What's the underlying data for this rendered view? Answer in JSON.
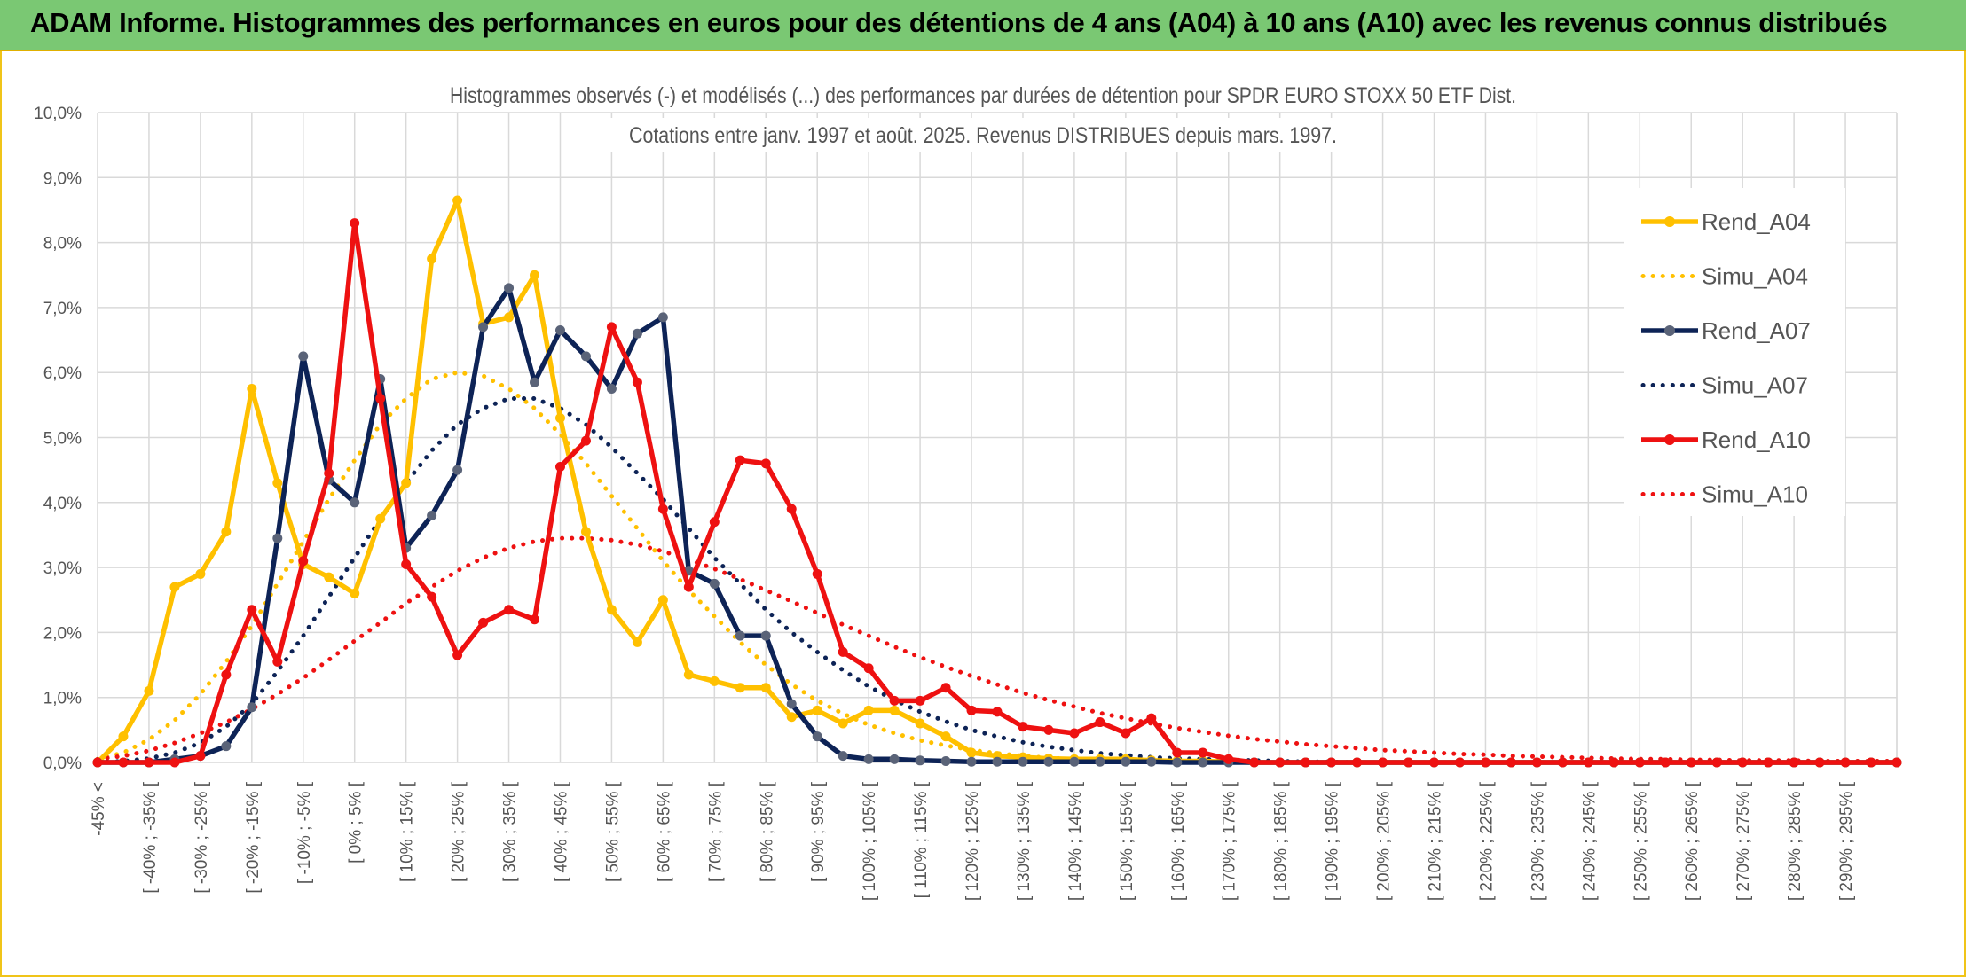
{
  "banner": {
    "title": "ADAM Informe. Histogrammes des performances en euros pour des détentions de 4 ans (A04) à 10 ans (A10) avec les revenus connus distribués"
  },
  "colors": {
    "banner_bg": "#7ac873",
    "yellow": "#ffc000",
    "navy": "#0d2356",
    "red": "#ee1111",
    "grid": "#d9d9d9"
  },
  "chart_data": {
    "type": "line",
    "title_lines": [
      "Histogrammes observés (-) et modélisés (...) des performances par durées de détention pour SPDR EURO STOXX 50 ETF Dist.",
      "Cotations entre janv. 1997 et août. 2025. Revenus DISTRIBUES depuis mars. 1997."
    ],
    "ylim": [
      0,
      10
    ],
    "y_ticks": [
      "0,0%",
      "1,0%",
      "2,0%",
      "3,0%",
      "4,0%",
      "5,0%",
      "6,0%",
      "7,0%",
      "8,0%",
      "9,0%",
      "10,0%"
    ],
    "x_tick_labels": [
      "-45% <",
      "[ -40% ; -35% [",
      "[ -30% ; -25% [",
      "[ -20% ; -15% [",
      "[ -10% ; -5% [",
      "[ 0% ; 5% [",
      "[ 10% ; 15% [",
      "[ 20% ; 25% [",
      "[ 30% ; 35% [",
      "[ 40% ; 45% [",
      "[ 50% ; 55% [",
      "[ 60% ; 65% [",
      "[ 70% ; 75% [",
      "[ 80% ; 85% [",
      "[ 90% ; 95% [",
      "[ 100% ; 105% [",
      "[ 110% ; 115% [",
      "[ 120% ; 125% [",
      "[ 130% ; 135% [",
      "[ 140% ; 145% [",
      "[ 150% ; 155% [",
      "[ 160% ; 165% [",
      "[ 170% ; 175% [",
      "[ 180% ; 185% [",
      "[ 190% ; 195% [",
      "[ 200% ; 205% [",
      "[ 210% ; 215% [",
      "[ 220% ; 225% [",
      "[ 230% ; 235% [",
      "[ 240% ; 245% [",
      "[ 250% ; 255% [",
      "[ 260% ; 265% [",
      "[ 270% ; 275% [",
      "[ 280% ; 285% [",
      "[ 290% ; 295% ["
    ],
    "grid": true,
    "legend_position": "right",
    "series": [
      {
        "name": "Rend_A04",
        "style": "solid",
        "color": "#ffc000",
        "values": [
          0,
          0.4,
          1.1,
          2.7,
          2.9,
          3.55,
          5.75,
          4.3,
          3.05,
          2.85,
          2.6,
          3.75,
          4.3,
          7.75,
          8.65,
          6.75,
          6.85,
          7.5,
          5.3,
          3.55,
          2.35,
          1.85,
          2.5,
          1.35,
          1.25,
          1.15,
          1.15,
          0.7,
          0.8,
          0.6,
          0.8,
          0.8,
          0.6,
          0.4,
          0.15,
          0.1,
          0.08,
          0.06,
          0.05,
          0.05,
          0.05,
          0.03,
          0.02,
          0.02,
          0.01,
          0,
          0,
          0,
          0,
          0,
          0,
          0,
          0,
          0,
          0,
          0,
          0,
          0,
          0,
          0,
          0,
          0,
          0,
          0,
          0,
          0,
          0,
          0,
          0,
          0,
          0
        ]
      },
      {
        "name": "Simu_A04",
        "style": "dotted",
        "color": "#ffc000",
        "values": [
          0.05,
          0.15,
          0.35,
          0.65,
          1.05,
          1.55,
          2.1,
          2.75,
          3.4,
          4.05,
          4.65,
          5.2,
          5.6,
          5.9,
          6.0,
          5.95,
          5.75,
          5.45,
          5.05,
          4.6,
          4.1,
          3.6,
          3.1,
          2.65,
          2.25,
          1.85,
          1.5,
          1.2,
          0.95,
          0.75,
          0.58,
          0.45,
          0.34,
          0.26,
          0.19,
          0.14,
          0.1,
          0.07,
          0.05,
          0.04,
          0.03,
          0.02,
          0.01,
          0.01,
          0,
          0,
          0,
          0,
          0,
          0,
          0,
          0,
          0,
          0,
          0,
          0,
          0,
          0,
          0,
          0,
          0,
          0,
          0,
          0,
          0,
          0,
          0,
          0,
          0,
          0,
          0
        ]
      },
      {
        "name": "Rend_A07",
        "style": "solid",
        "color": "#0d2356",
        "values": [
          0,
          0,
          0,
          0.05,
          0.1,
          0.25,
          0.85,
          3.45,
          6.25,
          4.35,
          4.0,
          5.9,
          3.3,
          3.8,
          4.5,
          6.7,
          7.3,
          5.85,
          6.65,
          6.25,
          5.75,
          6.6,
          6.85,
          2.95,
          2.75,
          1.95,
          1.95,
          0.9,
          0.4,
          0.1,
          0.05,
          0.05,
          0.03,
          0.02,
          0.01,
          0.01,
          0.01,
          0.01,
          0.01,
          0.01,
          0.01,
          0.01,
          0,
          0,
          0,
          0,
          0,
          0,
          0,
          0,
          0,
          0,
          0,
          0,
          0,
          0,
          0,
          0,
          0,
          0,
          0,
          0,
          0,
          0,
          0,
          0,
          0,
          0,
          0,
          0,
          0
        ]
      },
      {
        "name": "Simu_A07",
        "style": "dotted",
        "color": "#0d2356",
        "values": [
          0,
          0.02,
          0.06,
          0.15,
          0.3,
          0.55,
          0.9,
          1.4,
          1.95,
          2.55,
          3.15,
          3.75,
          4.3,
          4.8,
          5.2,
          5.45,
          5.6,
          5.6,
          5.45,
          5.2,
          4.85,
          4.45,
          4.05,
          3.6,
          3.15,
          2.75,
          2.35,
          2.0,
          1.7,
          1.42,
          1.17,
          0.96,
          0.78,
          0.63,
          0.5,
          0.4,
          0.31,
          0.24,
          0.19,
          0.14,
          0.11,
          0.08,
          0.06,
          0.05,
          0.04,
          0.03,
          0.02,
          0.01,
          0.01,
          0,
          0,
          0,
          0,
          0,
          0,
          0,
          0,
          0,
          0,
          0,
          0,
          0,
          0,
          0,
          0,
          0,
          0,
          0,
          0,
          0,
          0
        ]
      },
      {
        "name": "Rend_A10",
        "style": "solid",
        "color": "#ee1111",
        "values": [
          0,
          0,
          0,
          0,
          0.1,
          1.35,
          2.35,
          1.55,
          3.1,
          4.45,
          8.3,
          5.6,
          3.05,
          2.55,
          1.65,
          2.15,
          2.35,
          2.2,
          4.55,
          4.95,
          6.7,
          5.85,
          3.9,
          2.7,
          3.7,
          4.65,
          4.6,
          3.9,
          2.9,
          1.7,
          1.45,
          0.95,
          0.95,
          1.15,
          0.8,
          0.78,
          0.55,
          0.5,
          0.45,
          0.62,
          0.45,
          0.68,
          0.15,
          0.15,
          0.05,
          0,
          0,
          0,
          0,
          0,
          0,
          0,
          0,
          0,
          0,
          0,
          0,
          0,
          0,
          0,
          0,
          0,
          0,
          0,
          0,
          0,
          0,
          0,
          0,
          0,
          0
        ]
      },
      {
        "name": "Simu_A10",
        "style": "dotted",
        "color": "#ee1111",
        "values": [
          0.05,
          0.1,
          0.18,
          0.3,
          0.45,
          0.62,
          0.82,
          1.05,
          1.3,
          1.58,
          1.87,
          2.15,
          2.45,
          2.7,
          2.95,
          3.15,
          3.3,
          3.4,
          3.45,
          3.45,
          3.42,
          3.35,
          3.25,
          3.12,
          2.98,
          2.82,
          2.65,
          2.48,
          2.3,
          2.12,
          1.95,
          1.78,
          1.62,
          1.47,
          1.33,
          1.2,
          1.07,
          0.96,
          0.86,
          0.76,
          0.68,
          0.6,
          0.53,
          0.47,
          0.41,
          0.36,
          0.32,
          0.28,
          0.25,
          0.22,
          0.19,
          0.17,
          0.15,
          0.13,
          0.12,
          0.1,
          0.09,
          0.08,
          0.07,
          0.06,
          0.05,
          0.05,
          0.04,
          0.04,
          0.03,
          0.03,
          0.03,
          0.02,
          0.02,
          0.02,
          0.02
        ]
      }
    ]
  }
}
